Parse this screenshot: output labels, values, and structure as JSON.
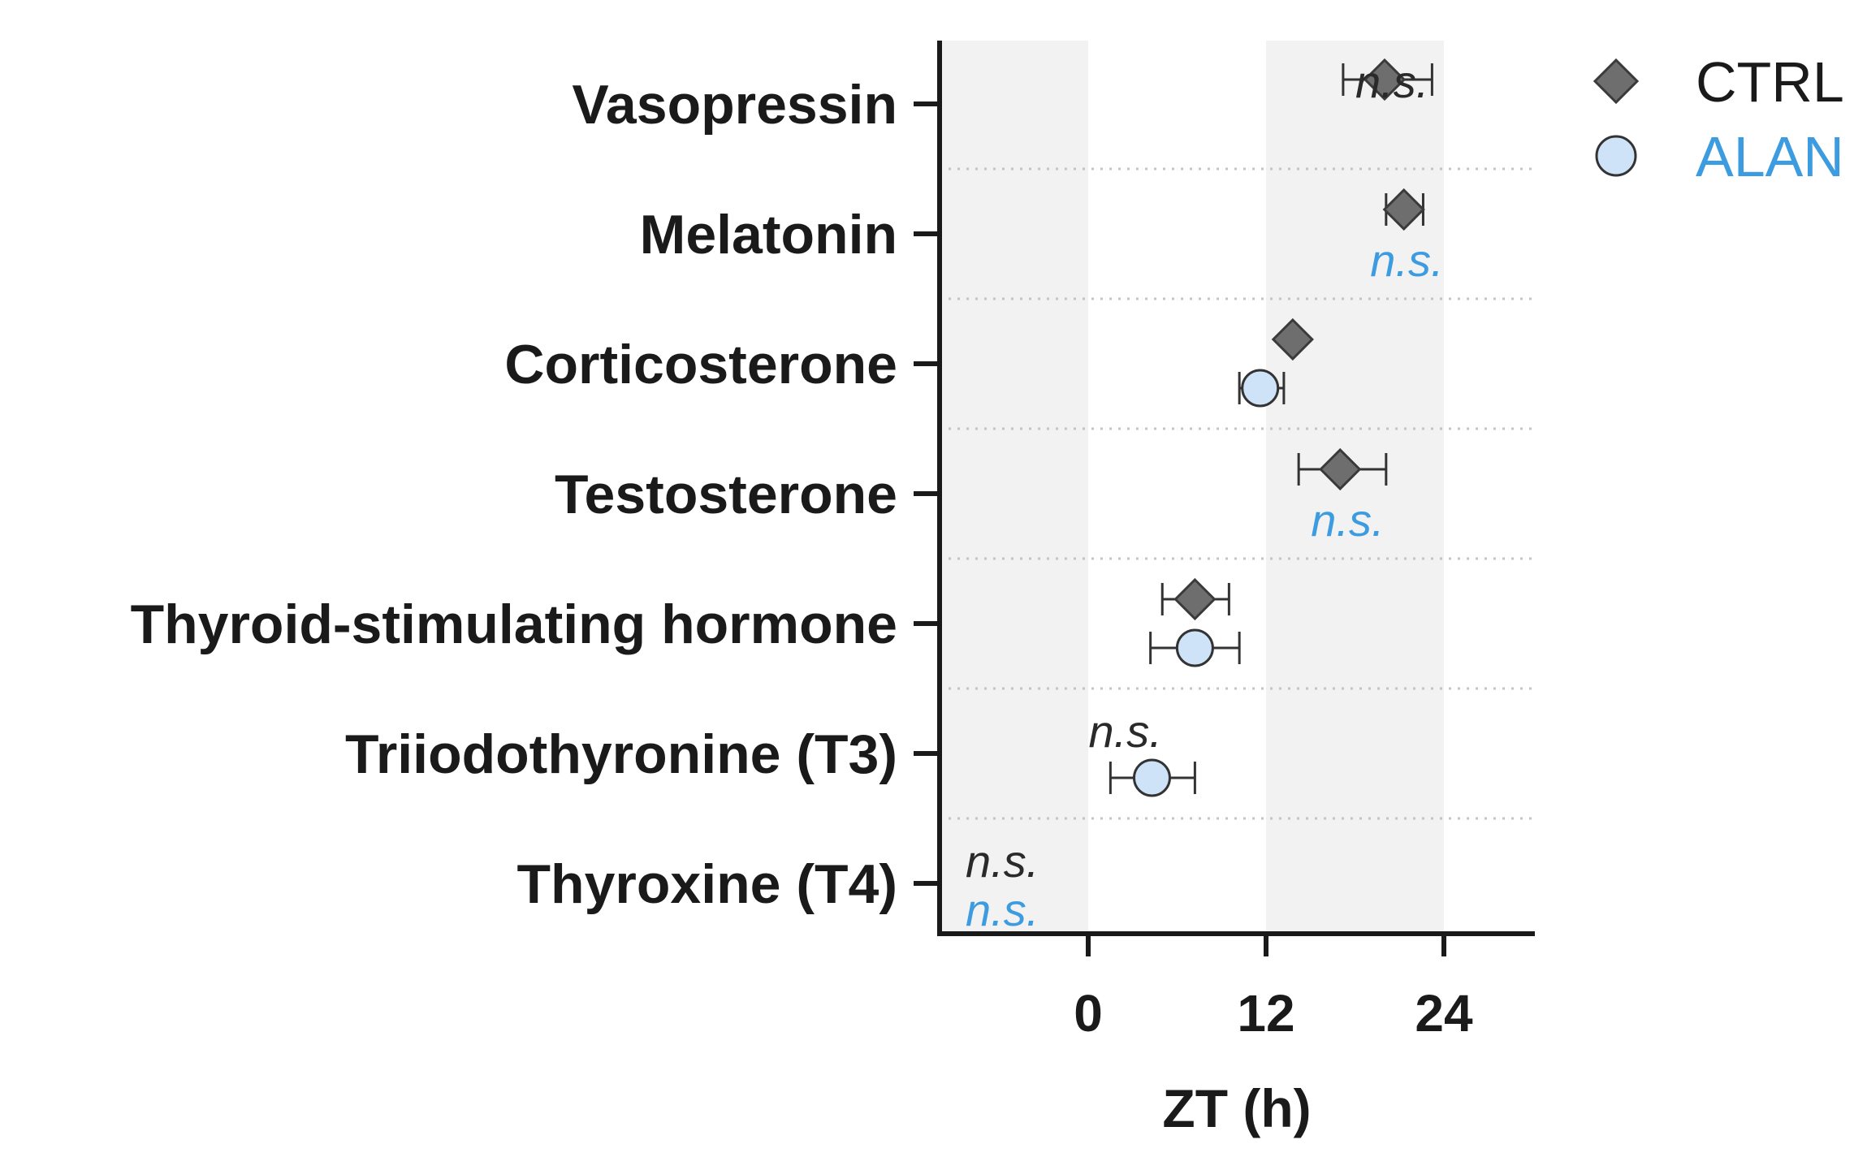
{
  "chart_data": {
    "type": "scatter",
    "title": "",
    "xlabel": "ZT (h)",
    "ylabel": "",
    "xlim": [
      -10,
      30
    ],
    "xticks": [
      0,
      12,
      24
    ],
    "xtick_labels": [
      "0",
      "12",
      "24"
    ],
    "shaded_regions": [
      [
        -10,
        0
      ],
      [
        12,
        24
      ]
    ],
    "grid": "horizontal dotted between rows",
    "legend_position": "top-right",
    "categories": [
      "Vasopressin",
      "Melatonin",
      "Corticosterone",
      "Testosterone",
      "Thyroid-stimulating hormone",
      "Triiodothyronine (T3)",
      "Thyroxine (T4)"
    ],
    "series": [
      {
        "name": "CTRL",
        "color": "#6e6e6e",
        "marker": "diamond",
        "points": [
          {
            "category": "Vasopressin",
            "x": 20,
            "err_low": 17.2,
            "err_high": 23.2
          },
          {
            "category": "Melatonin",
            "x": 21.3,
            "err_low": 20.1,
            "err_high": 22.6
          },
          {
            "category": "Corticosterone",
            "x": 13.8,
            "err_low": null,
            "err_high": null
          },
          {
            "category": "Testosterone",
            "x": 17,
            "err_low": 14.2,
            "err_high": 20.1
          },
          {
            "category": "Thyroid-stimulating hormone",
            "x": 7.2,
            "err_low": 5,
            "err_high": 9.5
          }
        ]
      },
      {
        "name": "ALAN",
        "color": "#3d9be0",
        "marker": "circle",
        "points": [
          {
            "category": "Corticosterone",
            "x": 11.6,
            "err_low": 10.2,
            "err_high": 13.2
          },
          {
            "category": "Thyroid-stimulating hormone",
            "x": 7.2,
            "err_low": 4.2,
            "err_high": 10.2
          },
          {
            "category": "Triiodothyronine (T3)",
            "x": 4.3,
            "err_low": 1.5,
            "err_high": 7.2
          }
        ]
      }
    ],
    "annotations": [
      {
        "category": "Vasopressin",
        "series": "CTRL",
        "text": "n.s.",
        "x": 20.5
      },
      {
        "category": "Melatonin",
        "series": "ALAN",
        "text": "n.s.",
        "x": 21.5
      },
      {
        "category": "Testosterone",
        "series": "ALAN",
        "text": "n.s.",
        "x": 17.5
      },
      {
        "category": "Triiodothyronine (T3)",
        "series": "CTRL",
        "text": "n.s.",
        "x": 2.5
      },
      {
        "category": "Thyroxine (T4)",
        "series": "CTRL",
        "text": "n.s.",
        "x": -5.8
      },
      {
        "category": "Thyroxine (T4)",
        "series": "ALAN",
        "text": "n.s.",
        "x": -5.8
      }
    ]
  }
}
